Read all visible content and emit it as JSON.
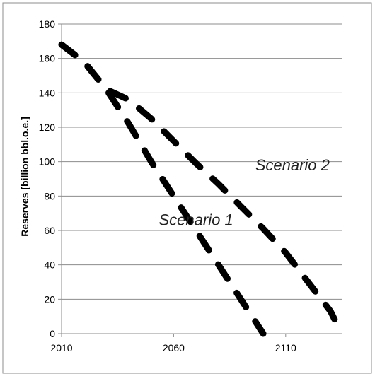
{
  "chart_data": {
    "type": "line",
    "title": "",
    "xlabel": "",
    "ylabel": "Reserves [billion bbl.o.e.]",
    "xlim": [
      2010,
      2135
    ],
    "ylim": [
      0,
      180
    ],
    "x_ticks": [
      2010,
      2060,
      2110
    ],
    "y_ticks": [
      0,
      20,
      40,
      60,
      80,
      100,
      120,
      140,
      160,
      180
    ],
    "grid": "horizontal",
    "line_style": "dashed",
    "line_color": "#000000",
    "series": [
      {
        "x": [
          2010,
          2020,
          2030,
          2040,
          2050,
          2060,
          2070,
          2080,
          2090,
          2100
        ],
        "values": [
          168,
          158,
          142,
          122,
          100,
          80,
          60,
          40,
          20,
          0
        ]
      },
      {
        "x": [
          2010,
          2020,
          2030,
          2040,
          2050,
          2060,
          2070,
          2080,
          2090,
          2100,
          2110,
          2120,
          2130,
          2135
        ],
        "values": [
          168,
          158,
          142,
          136,
          125,
          112,
          99,
          87,
          74,
          61,
          47,
          30,
          13,
          0
        ]
      }
    ],
    "annotations": [
      {
        "text": "Scenario 1",
        "x": 2070,
        "y": 63
      },
      {
        "text": "Scenario 2",
        "x": 2113,
        "y": 95
      }
    ]
  }
}
